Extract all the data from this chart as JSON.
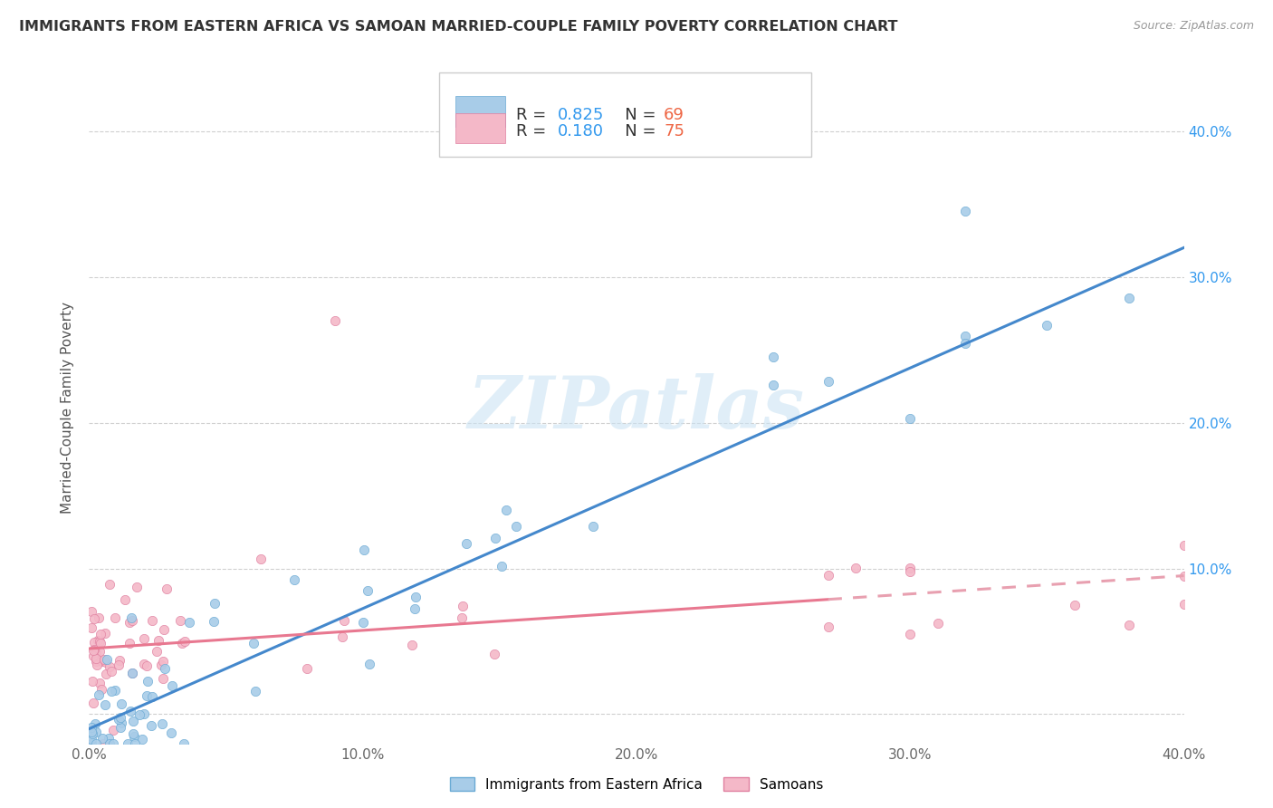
{
  "title": "IMMIGRANTS FROM EASTERN AFRICA VS SAMOAN MARRIED-COUPLE FAMILY POVERTY CORRELATION CHART",
  "source": "Source: ZipAtlas.com",
  "ylabel": "Married-Couple Family Poverty",
  "xlim": [
    0.0,
    0.4
  ],
  "ylim": [
    -0.02,
    0.44
  ],
  "xtick_labels": [
    "0.0%",
    "10.0%",
    "20.0%",
    "30.0%",
    "40.0%"
  ],
  "xtick_vals": [
    0.0,
    0.1,
    0.2,
    0.3,
    0.4
  ],
  "ytick_vals": [
    0.0,
    0.1,
    0.2,
    0.3,
    0.4
  ],
  "right_ytick_labels": [
    "",
    "10.0%",
    "20.0%",
    "30.0%",
    "40.0%"
  ],
  "series1_color": "#a8cce8",
  "series1_edge": "#6aaad4",
  "series2_color": "#f4b8c8",
  "series2_edge": "#e080a0",
  "trendline1_color": "#4488cc",
  "trendline2_solid_color": "#e87890",
  "trendline2_dash_color": "#e8a0b0",
  "background_color": "#ffffff",
  "grid_color": "#d0d0d0",
  "legend_R_color": "#3399ee",
  "legend_N_color": "#ee6644",
  "trendline1_x0": 0.0,
  "trendline1_y0": -0.01,
  "trendline1_x1": 0.4,
  "trendline1_y1": 0.32,
  "trendline2_x0": 0.0,
  "trendline2_y0": 0.045,
  "trendline2_x1": 0.4,
  "trendline2_y1": 0.095,
  "trendline2_dash_start": 0.27,
  "watermark_text": "ZIPatlas",
  "watermark_color": "#cce4f4"
}
